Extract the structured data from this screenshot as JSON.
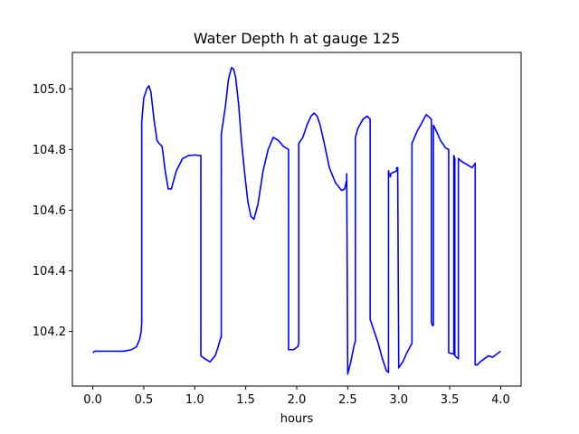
{
  "chart_data": {
    "type": "line",
    "title": "Water Depth h at gauge 125",
    "xlabel": "hours",
    "ylabel": "",
    "xlim": [
      -0.2,
      4.2
    ],
    "ylim": [
      104.02,
      105.12
    ],
    "xticks": [
      0.0,
      0.5,
      1.0,
      1.5,
      2.0,
      2.5,
      3.0,
      3.5,
      4.0
    ],
    "xtick_labels": [
      "0.0",
      "0.5",
      "1.0",
      "1.5",
      "2.0",
      "2.5",
      "3.0",
      "3.5",
      "4.0"
    ],
    "yticks": [
      104.2,
      104.4,
      104.6,
      104.8,
      105.0
    ],
    "ytick_labels": [
      "104.2",
      "104.4",
      "104.6",
      "104.8",
      "105.0"
    ],
    "grid": false,
    "series": [
      {
        "color": "#0000ff",
        "x": [
          0.0,
          0.02,
          0.1,
          0.2,
          0.3,
          0.38,
          0.43,
          0.46,
          0.475,
          0.48,
          0.48,
          0.5,
          0.53,
          0.55,
          0.57,
          0.6,
          0.63,
          0.65,
          0.68,
          0.71,
          0.74,
          0.77,
          0.82,
          0.88,
          0.94,
          1.0,
          1.05,
          1.06,
          1.06,
          1.1,
          1.15,
          1.2,
          1.23,
          1.255,
          1.26,
          1.26,
          1.3,
          1.33,
          1.36,
          1.38,
          1.4,
          1.43,
          1.46,
          1.49,
          1.52,
          1.55,
          1.58,
          1.62,
          1.67,
          1.72,
          1.77,
          1.82,
          1.87,
          1.92,
          1.92,
          1.97,
          2.01,
          2.02,
          2.02,
          2.06,
          2.1,
          2.14,
          2.17,
          2.2,
          2.23,
          2.27,
          2.32,
          2.38,
          2.44,
          2.47,
          2.49,
          2.49,
          2.5,
          2.53,
          2.56,
          2.575,
          2.575,
          2.6,
          2.65,
          2.69,
          2.72,
          2.72,
          2.76,
          2.8,
          2.84,
          2.88,
          2.9,
          2.9,
          2.905,
          2.92,
          2.92,
          2.95,
          2.98,
          2.98,
          2.99,
          3.0,
          3.0,
          3.04,
          3.08,
          3.12,
          3.13,
          3.13,
          3.18,
          3.23,
          3.27,
          3.32,
          3.32,
          3.33,
          3.34,
          3.34,
          3.37,
          3.41,
          3.46,
          3.49,
          3.49,
          3.54,
          3.54,
          3.55,
          3.55,
          3.585,
          3.585,
          3.62,
          3.67,
          3.72,
          3.75,
          3.75,
          3.77,
          3.8,
          3.84,
          3.88,
          3.92,
          3.96,
          3.98,
          4.0
        ],
        "y": [
          104.13,
          104.135,
          104.135,
          104.135,
          104.135,
          104.14,
          104.15,
          104.175,
          104.2,
          104.23,
          104.89,
          104.97,
          105.0,
          105.01,
          104.99,
          104.9,
          104.83,
          104.82,
          104.81,
          104.73,
          104.67,
          104.67,
          104.73,
          104.77,
          104.78,
          104.782,
          104.78,
          104.78,
          104.12,
          104.11,
          104.1,
          104.12,
          104.15,
          104.18,
          104.18,
          104.85,
          104.94,
          105.03,
          105.07,
          105.065,
          105.04,
          104.95,
          104.82,
          104.72,
          104.63,
          104.58,
          104.57,
          104.62,
          104.73,
          104.8,
          104.84,
          104.83,
          104.81,
          104.8,
          104.14,
          104.14,
          104.15,
          104.16,
          104.82,
          104.84,
          104.88,
          104.91,
          104.92,
          104.91,
          104.88,
          104.82,
          104.74,
          104.69,
          104.665,
          104.67,
          104.7,
          104.72,
          104.06,
          104.1,
          104.15,
          104.17,
          104.84,
          104.87,
          104.9,
          104.91,
          104.9,
          104.24,
          104.2,
          104.16,
          104.11,
          104.07,
          104.065,
          104.73,
          104.72,
          104.71,
          104.72,
          104.725,
          104.73,
          104.74,
          104.74,
          104.08,
          104.08,
          104.1,
          104.13,
          104.155,
          104.16,
          104.82,
          104.86,
          104.89,
          104.915,
          104.9,
          104.23,
          104.22,
          104.22,
          104.88,
          104.86,
          104.83,
          104.805,
          104.8,
          104.13,
          104.125,
          104.78,
          104.77,
          104.12,
          104.11,
          104.77,
          104.76,
          104.75,
          104.74,
          104.755,
          104.09,
          104.09,
          104.1,
          104.11,
          104.12,
          104.115,
          104.125,
          104.13,
          104.135
        ]
      }
    ]
  }
}
